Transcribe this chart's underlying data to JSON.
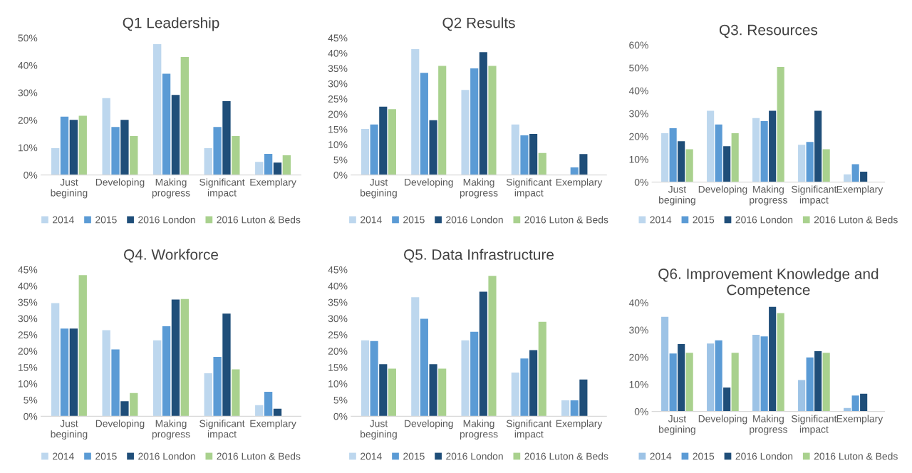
{
  "chart_data": [
    {
      "type": "bar",
      "title": "Q1 Leadership",
      "categories": [
        "Just\nbegining",
        "Developing",
        "Making\nprogress",
        "Significant\nimpact",
        "Exemplary"
      ],
      "legend": "bottom",
      "grid": false,
      "ylim": [
        0,
        50
      ],
      "yticks": [
        {
          "value": 0,
          "label": "0%"
        },
        {
          "value": 10,
          "label": "10%"
        },
        {
          "value": 20,
          "label": "20%"
        },
        {
          "value": 30,
          "label": "30%"
        },
        {
          "value": 40,
          "label": "40%"
        },
        {
          "value": 50,
          "label": "50%"
        }
      ],
      "series": [
        {
          "name": "2014",
          "color": "#bdd7ee",
          "values": [
            9.8,
            28.0,
            47.7,
            9.8,
            4.8
          ]
        },
        {
          "name": "2015",
          "color": "#5b9bd5",
          "values": [
            21.3,
            17.5,
            36.9,
            17.5,
            7.7
          ]
        },
        {
          "name": "2016 London",
          "color": "#1f4e79",
          "values": [
            20.1,
            20.1,
            29.2,
            26.9,
            4.5
          ]
        },
        {
          "name": "2016 Luton & Beds",
          "color": "#a9d18e",
          "values": [
            21.6,
            14.2,
            43.0,
            14.2,
            7.2
          ]
        }
      ]
    },
    {
      "type": "bar",
      "title": "Q2 Results",
      "categories": [
        "Just\nbegining",
        "Developing",
        "Making\nprogress",
        "Significant\nimpact",
        "Exemplary"
      ],
      "legend": "bottom",
      "grid": false,
      "ylim": [
        0,
        45
      ],
      "yticks": [
        {
          "value": 0,
          "label": "0%"
        },
        {
          "value": 5,
          "label": "5%"
        },
        {
          "value": 10,
          "label": "10%"
        },
        {
          "value": 15,
          "label": "15%"
        },
        {
          "value": 20,
          "label": "20%"
        },
        {
          "value": 25,
          "label": "25%"
        },
        {
          "value": 30,
          "label": "30%"
        },
        {
          "value": 35,
          "label": "35%"
        },
        {
          "value": 40,
          "label": "40%"
        },
        {
          "value": 45,
          "label": "45%"
        }
      ],
      "series": [
        {
          "name": "2014",
          "color": "#bdd7ee",
          "values": [
            15.1,
            41.3,
            27.9,
            16.6,
            0
          ]
        },
        {
          "name": "2015",
          "color": "#5b9bd5",
          "values": [
            16.6,
            33.5,
            35.0,
            13.0,
            2.5
          ]
        },
        {
          "name": "2016 London",
          "color": "#1f4e79",
          "values": [
            22.4,
            18.0,
            40.3,
            13.5,
            6.9
          ]
        },
        {
          "name": "2016 Luton & Beds",
          "color": "#a9d18e",
          "values": [
            21.6,
            35.8,
            35.8,
            7.2,
            0
          ]
        }
      ]
    },
    {
      "type": "bar",
      "title": "Q3. Resources",
      "categories": [
        "Just\nbegining",
        "Developing",
        "Making\nprogress",
        "Significant\nimpact",
        "Exemplary"
      ],
      "legend": "bottom",
      "grid": false,
      "ylim": [
        0,
        60
      ],
      "yticks": [
        {
          "value": 0,
          "label": "0%"
        },
        {
          "value": 10,
          "label": "10%"
        },
        {
          "value": 20,
          "label": "20%"
        },
        {
          "value": 30,
          "label": "30%"
        },
        {
          "value": 40,
          "label": "40%"
        },
        {
          "value": 50,
          "label": "50%"
        },
        {
          "value": 60,
          "label": "60%"
        }
      ],
      "series": [
        {
          "name": "2014",
          "color": "#bdd7ee",
          "values": [
            21.4,
            31.2,
            28.0,
            16.3,
            3.4
          ]
        },
        {
          "name": "2015",
          "color": "#5b9bd5",
          "values": [
            23.6,
            25.2,
            26.7,
            17.6,
            7.8
          ]
        },
        {
          "name": "2016 London",
          "color": "#1f4e79",
          "values": [
            17.9,
            15.7,
            31.2,
            31.2,
            4.6
          ]
        },
        {
          "name": "2016 Luton & Beds",
          "color": "#a9d18e",
          "values": [
            14.4,
            21.4,
            50.4,
            14.4,
            0
          ]
        }
      ]
    },
    {
      "type": "bar",
      "title": "Q4. Workforce",
      "categories": [
        "Just\nbegining",
        "Developing",
        "Making\nprogress",
        "Significant\nimpact",
        "Exemplary"
      ],
      "legend": "bottom",
      "grid": false,
      "ylim": [
        0,
        45
      ],
      "yticks": [
        {
          "value": 0,
          "label": "0%"
        },
        {
          "value": 5,
          "label": "5%"
        },
        {
          "value": 10,
          "label": "10%"
        },
        {
          "value": 15,
          "label": "15%"
        },
        {
          "value": 20,
          "label": "20%"
        },
        {
          "value": 25,
          "label": "25%"
        },
        {
          "value": 30,
          "label": "30%"
        },
        {
          "value": 35,
          "label": "35%"
        },
        {
          "value": 40,
          "label": "40%"
        },
        {
          "value": 45,
          "label": "45%"
        }
      ],
      "series": [
        {
          "name": "2014",
          "color": "#bdd7ee",
          "values": [
            34.7,
            26.4,
            23.3,
            13.2,
            3.4
          ]
        },
        {
          "name": "2015",
          "color": "#5b9bd5",
          "values": [
            26.9,
            20.5,
            27.6,
            18.2,
            7.5
          ]
        },
        {
          "name": "2016 London",
          "color": "#1f4e79",
          "values": [
            26.9,
            4.6,
            35.8,
            31.5,
            2.3
          ]
        },
        {
          "name": "2016 Luton & Beds",
          "color": "#a9d18e",
          "values": [
            43.3,
            7.1,
            36.0,
            14.4,
            0
          ]
        }
      ]
    },
    {
      "type": "bar",
      "title": "Q5. Data Infrastructure",
      "categories": [
        "Just\nbegining",
        "Developing",
        "Making\nprogress",
        "Significant\nimpact",
        "Exemplary"
      ],
      "legend": "bottom",
      "grid": false,
      "ylim": [
        0,
        45
      ],
      "yticks": [
        {
          "value": 0,
          "label": "0%"
        },
        {
          "value": 5,
          "label": "5%"
        },
        {
          "value": 10,
          "label": "10%"
        },
        {
          "value": 15,
          "label": "15%"
        },
        {
          "value": 20,
          "label": "20%"
        },
        {
          "value": 25,
          "label": "25%"
        },
        {
          "value": 30,
          "label": "30%"
        },
        {
          "value": 35,
          "label": "35%"
        },
        {
          "value": 40,
          "label": "40%"
        },
        {
          "value": 45,
          "label": "45%"
        }
      ],
      "series": [
        {
          "name": "2014",
          "color": "#bdd7ee",
          "values": [
            23.3,
            36.5,
            23.3,
            13.4,
            4.9
          ]
        },
        {
          "name": "2015",
          "color": "#5b9bd5",
          "values": [
            23.1,
            29.9,
            25.9,
            17.7,
            4.9
          ]
        },
        {
          "name": "2016 London",
          "color": "#1f4e79",
          "values": [
            16.0,
            16.0,
            38.2,
            20.3,
            11.3
          ]
        },
        {
          "name": "2016 Luton & Beds",
          "color": "#a9d18e",
          "values": [
            14.6,
            14.6,
            43.1,
            29.0,
            0
          ]
        }
      ]
    },
    {
      "type": "bar",
      "title": "Q6. Improvement Knowledge and Competence",
      "categories": [
        "Just\nbegining",
        "Developing",
        "Making\nprogress",
        "Significant\nimpact",
        "Exemplary"
      ],
      "legend": "bottom",
      "grid": false,
      "ylim": [
        0,
        40
      ],
      "yticks": [
        {
          "value": 0,
          "label": "0%"
        },
        {
          "value": 10,
          "label": "10%"
        },
        {
          "value": 20,
          "label": "20%"
        },
        {
          "value": 30,
          "label": "30%"
        },
        {
          "value": 40,
          "label": "40%"
        }
      ],
      "series": [
        {
          "name": "2014",
          "color": "#9dc3e6",
          "values": [
            34.8,
            25.0,
            28.2,
            11.6,
            1.3
          ]
        },
        {
          "name": "2015",
          "color": "#5b9bd5",
          "values": [
            21.3,
            26.2,
            27.6,
            19.9,
            5.9
          ]
        },
        {
          "name": "2016 London",
          "color": "#1f4e79",
          "values": [
            24.8,
            8.8,
            38.5,
            22.2,
            6.5
          ]
        },
        {
          "name": "2016 Luton & Beds",
          "color": "#a9d18e",
          "values": [
            21.6,
            21.6,
            36.2,
            21.6,
            0
          ]
        }
      ]
    }
  ]
}
